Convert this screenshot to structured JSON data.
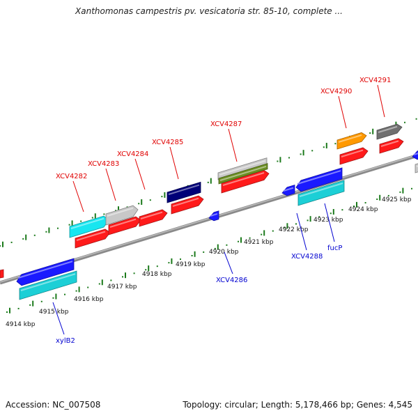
{
  "title": "Xanthomonas campestris pv. vesicatoria str. 85-10, complete ...",
  "footer": {
    "accession": "Accession: NC_007508",
    "stats": "Topology: circular; Length: 5,178,466 bp; Genes: 4,545"
  },
  "colors": {
    "backbone": "#8a8a8a",
    "tick": "#1b7a1b",
    "gene_label_top": "#e00000",
    "gene_label_bottom": "#0000d0",
    "kbp_label": "#111111"
  },
  "kbp_labels": [
    "4914 kbp",
    "4915 kbp",
    "4916 kbp",
    "4917 kbp",
    "4918 kbp",
    "4919 kbp",
    "4920 kbp",
    "4921 kbp",
    "4922 kbp",
    "4923 kbp",
    "4924 kbp",
    "4925 kbp"
  ],
  "gene_labels": [
    {
      "text": "XCV4282",
      "strand": "top"
    },
    {
      "text": "XCV4283",
      "strand": "top"
    },
    {
      "text": "XCV4284",
      "strand": "top"
    },
    {
      "text": "XCV4285",
      "strand": "top"
    },
    {
      "text": "XCV4287",
      "strand": "top"
    },
    {
      "text": "XCV4290",
      "strand": "top"
    },
    {
      "text": "XCV4291",
      "strand": "top"
    },
    {
      "text": "xylB2",
      "strand": "bottom"
    },
    {
      "text": "XCV4286",
      "strand": "bottom"
    },
    {
      "text": "XCV4288",
      "strand": "bottom"
    },
    {
      "text": "fucP",
      "strand": "bottom"
    }
  ],
  "features": [
    {
      "name": "cds-red",
      "color": "#ff1a1a"
    },
    {
      "name": "gene-cyan",
      "color": "#18e6f0"
    },
    {
      "name": "gene-lightgray",
      "color": "#c8c8c8"
    },
    {
      "name": "gene-navy",
      "color": "#000078"
    },
    {
      "name": "gene-olive",
      "color": "#6b8e23"
    },
    {
      "name": "gene-orange",
      "color": "#ff9900"
    },
    {
      "name": "gene-darkgray",
      "color": "#707070"
    },
    {
      "name": "cds-blue",
      "color": "#1a1aff"
    },
    {
      "name": "gene-teal",
      "color": "#1ccfd6"
    }
  ]
}
